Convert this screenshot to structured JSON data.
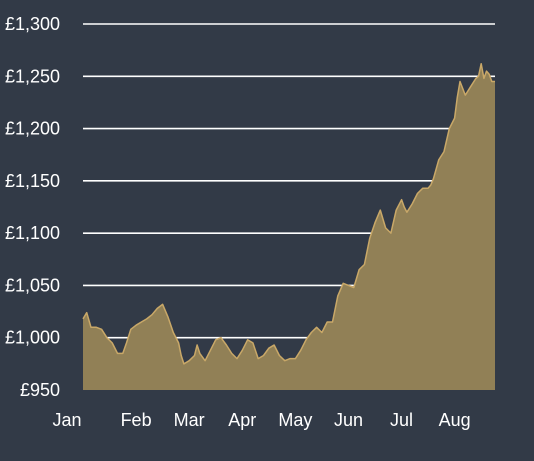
{
  "chart_data": {
    "type": "area",
    "title": "",
    "xlabel": "",
    "ylabel": "",
    "ylim": [
      950,
      1300
    ],
    "yticks": [
      950,
      1000,
      1050,
      1100,
      1150,
      1200,
      1250,
      1300
    ],
    "ytick_labels": [
      "£950",
      "£1,000",
      "£1,050",
      "£1,100",
      "£1,150",
      "£1,200",
      "£1,250",
      "£1,300"
    ],
    "xlim": [
      0,
      7.76
    ],
    "xticks": [
      0,
      1,
      2,
      3,
      4,
      5,
      6,
      7
    ],
    "xtick_labels": [
      "Jan",
      "Feb",
      "Mar",
      "Apr",
      "May",
      "Jun",
      "Jul",
      "Aug"
    ],
    "x_unit": "months since start of Jan",
    "grid": "horizontal",
    "series": [
      {
        "x": [
          0.0,
          0.07,
          0.15,
          0.25,
          0.35,
          0.45,
          0.55,
          0.65,
          0.75,
          0.82,
          0.9,
          1.0,
          1.1,
          1.2,
          1.3,
          1.4,
          1.5,
          1.6,
          1.7,
          1.8,
          1.85,
          1.9,
          2.0,
          2.1,
          2.15,
          2.2,
          2.3,
          2.4,
          2.5,
          2.6,
          2.7,
          2.8,
          2.9,
          3.0,
          3.1,
          3.2,
          3.3,
          3.4,
          3.5,
          3.6,
          3.7,
          3.8,
          3.9,
          4.0,
          4.1,
          4.2,
          4.3,
          4.4,
          4.5,
          4.6,
          4.7,
          4.8,
          4.9,
          5.0,
          5.1,
          5.2,
          5.3,
          5.4,
          5.5,
          5.6,
          5.7,
          5.8,
          5.9,
          6.0,
          6.05,
          6.1,
          6.2,
          6.3,
          6.4,
          6.5,
          6.55,
          6.6,
          6.7,
          6.8,
          6.9,
          7.0,
          7.05,
          7.1,
          7.2,
          7.3,
          7.4,
          7.45,
          7.5,
          7.55,
          7.6,
          7.65,
          7.7,
          7.76
        ],
        "values": [
          1018,
          1024,
          1010,
          1010,
          1008,
          1000,
          995,
          985,
          985,
          995,
          1008,
          1012,
          1015,
          1018,
          1022,
          1028,
          1032,
          1020,
          1005,
          995,
          983,
          975,
          978,
          983,
          993,
          985,
          978,
          988,
          998,
          1000,
          993,
          985,
          980,
          988,
          998,
          995,
          980,
          983,
          990,
          993,
          983,
          978,
          980,
          980,
          988,
          998,
          1005,
          1010,
          1005,
          1015,
          1015,
          1040,
          1052,
          1050,
          1048,
          1065,
          1070,
          1095,
          1110,
          1122,
          1105,
          1100,
          1122,
          1132,
          1125,
          1120,
          1128,
          1138,
          1143,
          1143,
          1146,
          1152,
          1170,
          1178,
          1200,
          1210,
          1230,
          1245,
          1232,
          1240,
          1248,
          1250,
          1262,
          1248,
          1255,
          1252,
          1245,
          1245
        ]
      }
    ],
    "colors": {
      "background": "#323a47",
      "fill": "#918056",
      "line": "#c9a868",
      "grid": "#ffffff",
      "text": "#ffffff"
    }
  }
}
